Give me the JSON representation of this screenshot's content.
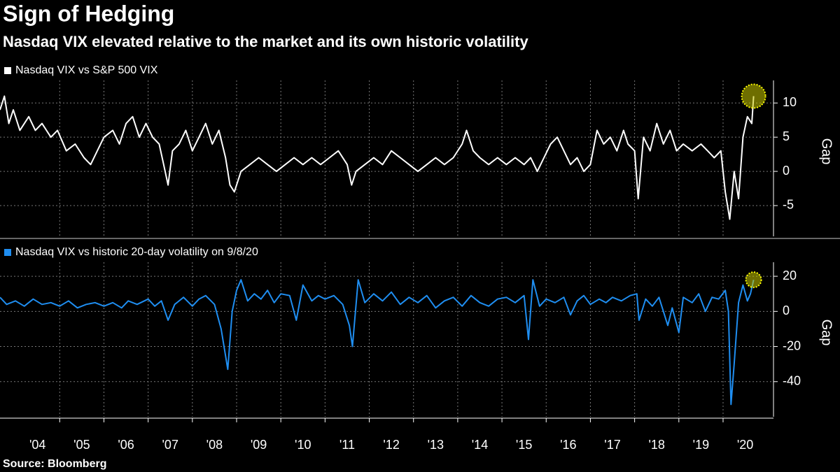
{
  "title": "Sign of Hedging",
  "subtitle": "Nasdaq VIX elevated relative to the market and its own historic volatility",
  "source": "Source: Bloomberg",
  "chart_data": [
    {
      "type": "line",
      "y_label": "Gap",
      "xlim": [
        2003.65,
        2021.14
      ],
      "ylim": [
        -9.5,
        13.3
      ],
      "yticks": [
        -5,
        0,
        5,
        10
      ],
      "grid": true,
      "x_gridlines": [
        2005,
        2006,
        2007,
        2008,
        2009,
        2010,
        2011,
        2012,
        2013,
        2014,
        2015,
        2016,
        2017,
        2018,
        2019,
        2020
      ],
      "series": [
        {
          "name": "Nasdaq VIX vs S&P 500 VIX",
          "color": "#ffffff",
          "x": [
            2003.65,
            2003.75,
            2003.85,
            2003.95,
            2004.1,
            2004.3,
            2004.45,
            2004.6,
            2004.8,
            2004.95,
            2005.15,
            2005.35,
            2005.55,
            2005.7,
            2005.85,
            2006.0,
            2006.2,
            2006.35,
            2006.5,
            2006.65,
            2006.8,
            2006.95,
            2007.1,
            2007.25,
            2007.35,
            2007.45,
            2007.55,
            2007.7,
            2007.85,
            2008.0,
            2008.15,
            2008.3,
            2008.45,
            2008.6,
            2008.75,
            2008.85,
            2008.95,
            2009.1,
            2009.3,
            2009.5,
            2009.7,
            2009.9,
            2010.1,
            2010.3,
            2010.5,
            2010.7,
            2010.9,
            2011.1,
            2011.3,
            2011.5,
            2011.6,
            2011.7,
            2011.9,
            2012.1,
            2012.3,
            2012.5,
            2012.7,
            2012.9,
            2013.1,
            2013.3,
            2013.5,
            2013.7,
            2013.9,
            2014.1,
            2014.2,
            2014.35,
            2014.5,
            2014.7,
            2014.9,
            2015.1,
            2015.3,
            2015.5,
            2015.65,
            2015.8,
            2015.95,
            2016.1,
            2016.25,
            2016.4,
            2016.55,
            2016.7,
            2016.85,
            2017.0,
            2017.15,
            2017.3,
            2017.45,
            2017.6,
            2017.75,
            2017.85,
            2018.0,
            2018.08,
            2018.2,
            2018.35,
            2018.5,
            2018.65,
            2018.8,
            2018.95,
            2019.1,
            2019.3,
            2019.5,
            2019.65,
            2019.8,
            2019.95,
            2020.05,
            2020.15,
            2020.25,
            2020.35,
            2020.45,
            2020.55,
            2020.65,
            2020.69
          ],
          "values": [
            9,
            11,
            7,
            9,
            6,
            8,
            6,
            7,
            5,
            6,
            3,
            4,
            2,
            1,
            3,
            5,
            6,
            4,
            7,
            8,
            5,
            7,
            5,
            4,
            1,
            -2,
            3,
            4,
            6,
            3,
            5,
            7,
            4,
            6,
            2,
            -2,
            -3,
            0,
            1,
            2,
            1,
            0,
            1,
            2,
            1,
            2,
            1,
            2,
            3,
            1,
            -2,
            0,
            1,
            2,
            1,
            3,
            2,
            1,
            0,
            1,
            2,
            1,
            2,
            4,
            6,
            3,
            2,
            1,
            2,
            1,
            2,
            1,
            2,
            0,
            2,
            4,
            5,
            3,
            1,
            2,
            0,
            1,
            6,
            4,
            5,
            3,
            6,
            4,
            3,
            -4,
            5,
            3,
            7,
            4,
            6,
            3,
            4,
            3,
            4,
            3,
            2,
            3,
            -3,
            -7,
            0,
            -4,
            5,
            8,
            7,
            11
          ]
        }
      ]
    },
    {
      "type": "line",
      "y_label": "Gap",
      "xlim": [
        2003.65,
        2021.14
      ],
      "ylim": [
        -60,
        28
      ],
      "yticks": [
        -40,
        -20,
        0,
        20
      ],
      "grid": true,
      "x_gridlines": [
        2005,
        2006,
        2007,
        2008,
        2009,
        2010,
        2011,
        2012,
        2013,
        2014,
        2015,
        2016,
        2017,
        2018,
        2019,
        2020
      ],
      "xticks": [
        {
          "value": 2004.5,
          "label": "'04"
        },
        {
          "value": 2005.5,
          "label": "'05"
        },
        {
          "value": 2006.5,
          "label": "'06"
        },
        {
          "value": 2007.5,
          "label": "'07"
        },
        {
          "value": 2008.5,
          "label": "'08"
        },
        {
          "value": 2009.5,
          "label": "'09"
        },
        {
          "value": 2010.5,
          "label": "'10"
        },
        {
          "value": 2011.5,
          "label": "'11"
        },
        {
          "value": 2012.5,
          "label": "'12"
        },
        {
          "value": 2013.5,
          "label": "'13"
        },
        {
          "value": 2014.5,
          "label": "'14"
        },
        {
          "value": 2015.5,
          "label": "'15"
        },
        {
          "value": 2016.5,
          "label": "'16"
        },
        {
          "value": 2017.5,
          "label": "'17"
        },
        {
          "value": 2018.5,
          "label": "'18"
        },
        {
          "value": 2019.5,
          "label": "'19"
        },
        {
          "value": 2020.5,
          "label": "'20"
        }
      ],
      "series": [
        {
          "name": "Nasdaq VIX vs historic 20-day volatility on 9/8/20",
          "color": "#1f8ef1",
          "x": [
            2003.65,
            2003.8,
            2004.0,
            2004.2,
            2004.4,
            2004.6,
            2004.8,
            2005.0,
            2005.2,
            2005.4,
            2005.6,
            2005.8,
            2006.0,
            2006.2,
            2006.4,
            2006.55,
            2006.75,
            2007.0,
            2007.15,
            2007.3,
            2007.45,
            2007.6,
            2007.8,
            2008.0,
            2008.15,
            2008.3,
            2008.5,
            2008.65,
            2008.8,
            2008.9,
            2009.0,
            2009.1,
            2009.25,
            2009.4,
            2009.55,
            2009.7,
            2009.85,
            2010.0,
            2010.2,
            2010.35,
            2010.5,
            2010.7,
            2010.85,
            2011.0,
            2011.2,
            2011.4,
            2011.55,
            2011.62,
            2011.75,
            2011.9,
            2012.1,
            2012.3,
            2012.5,
            2012.7,
            2012.9,
            2013.1,
            2013.3,
            2013.5,
            2013.7,
            2013.9,
            2014.1,
            2014.3,
            2014.5,
            2014.7,
            2014.9,
            2015.1,
            2015.3,
            2015.5,
            2015.6,
            2015.7,
            2015.85,
            2016.0,
            2016.2,
            2016.4,
            2016.55,
            2016.7,
            2016.85,
            2017.0,
            2017.2,
            2017.35,
            2017.5,
            2017.7,
            2017.9,
            2018.05,
            2018.1,
            2018.25,
            2018.4,
            2018.55,
            2018.75,
            2018.85,
            2019.0,
            2019.1,
            2019.3,
            2019.45,
            2019.6,
            2019.75,
            2019.9,
            2020.05,
            2020.12,
            2020.18,
            2020.25,
            2020.35,
            2020.45,
            2020.55,
            2020.62,
            2020.69
          ],
          "values": [
            8,
            4,
            6,
            3,
            7,
            4,
            5,
            3,
            6,
            2,
            4,
            5,
            3,
            5,
            2,
            6,
            4,
            7,
            3,
            6,
            -5,
            4,
            8,
            3,
            7,
            9,
            4,
            -10,
            -33,
            0,
            12,
            18,
            6,
            10,
            7,
            12,
            5,
            10,
            9,
            -5,
            15,
            6,
            9,
            7,
            9,
            4,
            -8,
            -20,
            18,
            5,
            10,
            6,
            11,
            4,
            8,
            5,
            9,
            2,
            6,
            8,
            3,
            9,
            5,
            3,
            7,
            8,
            5,
            9,
            -16,
            18,
            3,
            7,
            5,
            8,
            -2,
            6,
            9,
            4,
            7,
            5,
            8,
            6,
            9,
            10,
            -5,
            7,
            3,
            8,
            -8,
            2,
            -12,
            8,
            5,
            10,
            0,
            8,
            7,
            12,
            0,
            -53,
            -30,
            5,
            15,
            6,
            10,
            18
          ]
        }
      ]
    }
  ]
}
